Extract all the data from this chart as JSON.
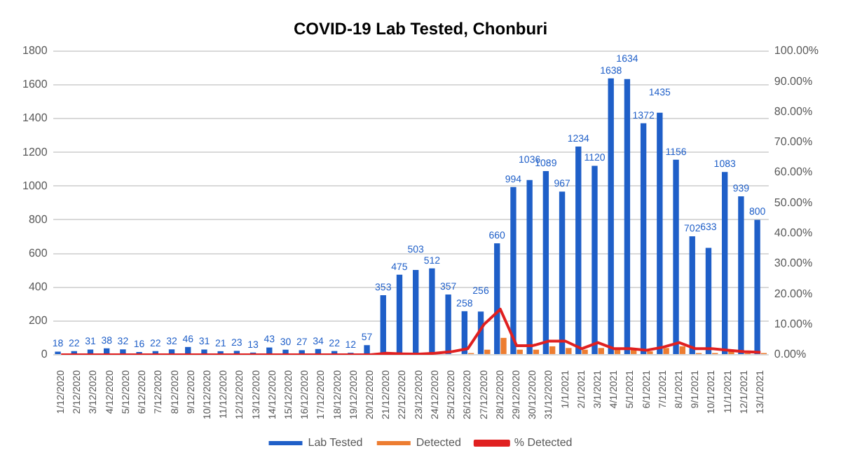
{
  "chart_data": {
    "type": "bar",
    "title": "COVID-19 Lab Tested, Chonburi",
    "categories": [
      "1/12/2020",
      "2/12/2020",
      "3/12/2020",
      "4/12/2020",
      "5/12/2020",
      "6/12/2020",
      "7/12/2020",
      "8/12/2020",
      "9/12/2020",
      "10/12/2020",
      "11/12/2020",
      "12/12/2020",
      "13/12/2020",
      "14/12/2020",
      "15/12/2020",
      "16/12/2020",
      "17/12/2020",
      "18/12/2020",
      "19/12/2020",
      "20/12/2020",
      "21/12/2020",
      "22/12/2020",
      "23/12/2020",
      "24/12/2020",
      "25/12/2020",
      "26/12/2020",
      "27/12/2020",
      "28/12/2020",
      "29/12/2020",
      "30/12/2020",
      "31/12/2020",
      "1/1/2021",
      "2/1/2021",
      "3/1/2021",
      "4/1/2021",
      "5/1/2021",
      "6/1/2021",
      "7/1/2021",
      "8/1/2021",
      "9/1/2021",
      "10/1/2021",
      "11/1/2021",
      "12/1/2021",
      "13/1/2021"
    ],
    "series": [
      {
        "name": "Lab Tested",
        "color": "#1f5fc8",
        "values": [
          18,
          22,
          31,
          38,
          32,
          16,
          22,
          32,
          46,
          31,
          21,
          23,
          13,
          43,
          30,
          27,
          34,
          22,
          12,
          57,
          353,
          475,
          503,
          512,
          357,
          258,
          256,
          660,
          994,
          1036,
          1089,
          967,
          1234,
          1120,
          1638,
          1634,
          1372,
          1435,
          1156,
          702,
          633,
          1083,
          939,
          800
        ],
        "value_labels": [
          "18",
          "22",
          "31",
          "38",
          "32",
          "16",
          "22",
          "32",
          "46",
          "31",
          "21",
          "23",
          "13",
          "43",
          "30",
          "27",
          "34",
          "22",
          "12",
          "57",
          "353",
          "475",
          "503",
          "512",
          "357",
          "258",
          "256",
          "660",
          "994",
          "1036",
          "1089",
          "967",
          "1234",
          "1120",
          "1638",
          "1634",
          "1372",
          "1435",
          "1156",
          "702",
          "633",
          "1083",
          "939",
          "800"
        ]
      },
      {
        "name": "Detected",
        "color": "#ed7d31",
        "values": [
          0,
          0,
          0,
          0,
          0,
          0,
          0,
          0,
          0,
          0,
          0,
          0,
          0,
          0,
          0,
          0,
          0,
          0,
          0,
          0,
          0,
          0,
          0,
          0,
          0,
          10,
          30,
          100,
          30,
          30,
          50,
          40,
          30,
          40,
          30,
          30,
          20,
          40,
          50,
          10,
          10,
          20,
          10,
          10
        ]
      },
      {
        "name": "% Detected",
        "type": "line",
        "axis": "y2",
        "color": "#e02020",
        "values": [
          0,
          0,
          0,
          0,
          0,
          0,
          0,
          0,
          0,
          0,
          0,
          0,
          0,
          0,
          0,
          0,
          0,
          0,
          0,
          0,
          0.5,
          0.3,
          0.2,
          0.5,
          1,
          2,
          10,
          15,
          3,
          3,
          4.5,
          4.5,
          2,
          4,
          2,
          2,
          1.5,
          2.5,
          4,
          2,
          2,
          1.5,
          1,
          0.8
        ]
      }
    ],
    "ylim": [
      0,
      1800
    ],
    "yticks": [
      0,
      200,
      400,
      600,
      800,
      1000,
      1200,
      1400,
      1600,
      1800
    ],
    "y2lim": [
      0,
      100
    ],
    "y2ticks": [
      {
        "value": 0,
        "label": "0.00%"
      },
      {
        "value": 10,
        "label": "10.00%"
      },
      {
        "value": 20,
        "label": "20.00%"
      },
      {
        "value": 30,
        "label": "30.00%"
      },
      {
        "value": 40,
        "label": "40.00%"
      },
      {
        "value": 50,
        "label": "50.00%"
      },
      {
        "value": 60,
        "label": "60.00%"
      },
      {
        "value": 70,
        "label": "70.00%"
      },
      {
        "value": 80,
        "label": "80.00%"
      },
      {
        "value": 90,
        "label": "90.00%"
      },
      {
        "value": 100,
        "label": "100.00%"
      }
    ],
    "grid": "y",
    "legend": "bottom",
    "marker": "none",
    "line_style": "solid"
  }
}
